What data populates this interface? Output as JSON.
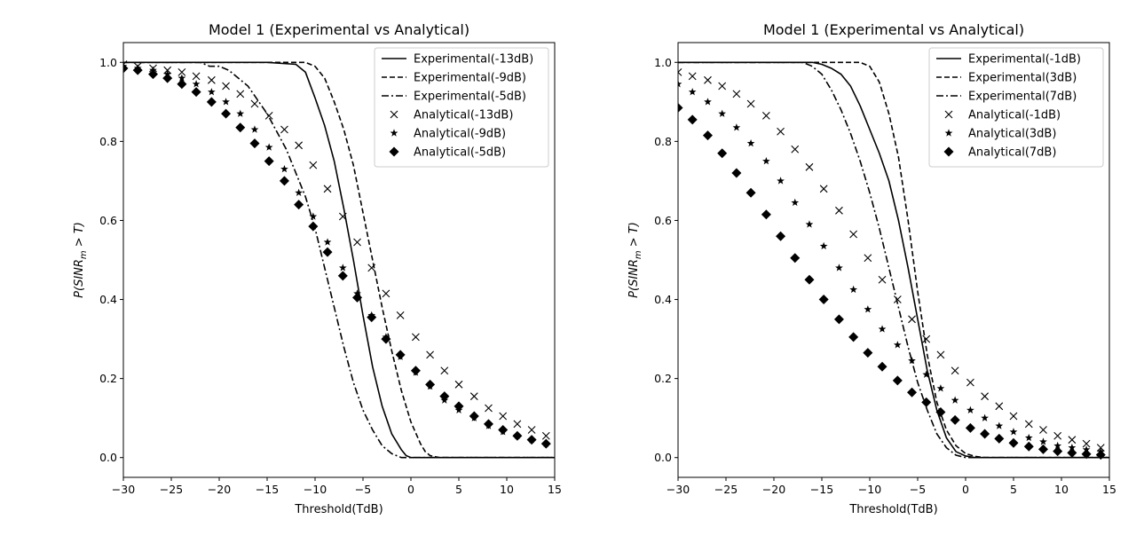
{
  "chart_data": [
    {
      "type": "line",
      "title": "Model 1 (Experimental vs Analytical)",
      "xlabel": "Threshold(TdB)",
      "ylabel_prefix": "P(SINR",
      "ylabel_sub": "m",
      "ylabel_suffix": " > T)",
      "xlim": [
        -30,
        15
      ],
      "ylim": [
        -0.05,
        1.05
      ],
      "xticks": [
        -30,
        -25,
        -20,
        -15,
        -10,
        -5,
        0,
        5,
        10,
        15
      ],
      "yticks": [
        0.0,
        0.2,
        0.4,
        0.6,
        0.8,
        1.0
      ],
      "legend_position": "top-right",
      "series": [
        {
          "name": "Experimental(-13dB)",
          "style": "solid",
          "marker": "none",
          "x": [
            -30,
            -15,
            -12,
            -11,
            -10,
            -9,
            -8,
            -7,
            -6,
            -5,
            -4,
            -3,
            -2,
            -1,
            -0.5,
            0,
            15
          ],
          "y": [
            1.0,
            1.0,
            0.995,
            0.975,
            0.91,
            0.84,
            0.75,
            0.63,
            0.5,
            0.36,
            0.23,
            0.13,
            0.06,
            0.02,
            0.005,
            0.0,
            0.0
          ]
        },
        {
          "name": "Experimental(-9dB)",
          "style": "dashed",
          "marker": "none",
          "x": [
            -30,
            -11,
            -10,
            -9,
            -8,
            -7,
            -6,
            -5,
            -4,
            -3,
            -2,
            -1,
            0,
            1,
            1.5,
            2,
            3,
            15
          ],
          "y": [
            1.0,
            1.0,
            0.99,
            0.96,
            0.9,
            0.83,
            0.74,
            0.62,
            0.5,
            0.38,
            0.27,
            0.17,
            0.09,
            0.035,
            0.015,
            0.005,
            0.0,
            0.0
          ]
        },
        {
          "name": "Experimental(-5dB)",
          "style": "dashdot",
          "marker": "none",
          "x": [
            -30,
            -22,
            -21,
            -20,
            -19,
            -17,
            -15,
            -13,
            -11,
            -10,
            -9,
            -8,
            -7,
            -6,
            -5,
            -4,
            -3,
            -2,
            -1.5,
            -1,
            0,
            15
          ],
          "y": [
            1.0,
            1.0,
            0.99,
            0.99,
            0.98,
            0.94,
            0.87,
            0.78,
            0.66,
            0.58,
            0.48,
            0.38,
            0.28,
            0.19,
            0.12,
            0.07,
            0.03,
            0.01,
            0.005,
            0.0,
            0.0,
            0.0
          ]
        },
        {
          "name": "Analytical(-13dB)",
          "style": "none",
          "marker": "x",
          "x": [
            -30,
            -28.5,
            -26.9,
            -25.4,
            -23.9,
            -22.4,
            -20.8,
            -19.3,
            -17.8,
            -16.3,
            -14.8,
            -13.2,
            -11.7,
            -10.2,
            -8.7,
            -7.1,
            -5.6,
            -4.1,
            -2.6,
            -1.1,
            0.5,
            2,
            3.5,
            5,
            6.6,
            8.1,
            9.6,
            11.1,
            12.6,
            14.1
          ],
          "y": [
            0.995,
            0.99,
            0.985,
            0.98,
            0.975,
            0.965,
            0.955,
            0.94,
            0.92,
            0.895,
            0.865,
            0.83,
            0.79,
            0.74,
            0.68,
            0.61,
            0.545,
            0.48,
            0.415,
            0.36,
            0.305,
            0.26,
            0.22,
            0.185,
            0.155,
            0.125,
            0.105,
            0.085,
            0.07,
            0.055
          ]
        },
        {
          "name": "Analytical(-9dB)",
          "style": "none",
          "marker": "star",
          "x": [
            -30,
            -28.5,
            -26.9,
            -25.4,
            -23.9,
            -22.4,
            -20.8,
            -19.3,
            -17.8,
            -16.3,
            -14.8,
            -13.2,
            -11.7,
            -10.2,
            -8.7,
            -7.1,
            -5.6,
            -4.1,
            -2.6,
            -1.1,
            0.5,
            2,
            3.5,
            5,
            6.6,
            8.1,
            9.6,
            11.1,
            12.6,
            14.1
          ],
          "y": [
            0.99,
            0.985,
            0.98,
            0.97,
            0.96,
            0.945,
            0.925,
            0.9,
            0.87,
            0.83,
            0.785,
            0.73,
            0.67,
            0.61,
            0.545,
            0.48,
            0.415,
            0.36,
            0.305,
            0.255,
            0.215,
            0.18,
            0.145,
            0.12,
            0.1,
            0.08,
            0.065,
            0.055,
            0.045,
            0.035
          ]
        },
        {
          "name": "Analytical(-5dB)",
          "style": "none",
          "marker": "diamond",
          "x": [
            -30,
            -28.5,
            -26.9,
            -25.4,
            -23.9,
            -22.4,
            -20.8,
            -19.3,
            -17.8,
            -16.3,
            -14.8,
            -13.2,
            -11.7,
            -10.2,
            -8.7,
            -7.1,
            -5.6,
            -4.1,
            -2.6,
            -1.1,
            0.5,
            2,
            3.5,
            5,
            6.6,
            8.1,
            9.6,
            11.1,
            12.6,
            14.1
          ],
          "y": [
            0.985,
            0.98,
            0.97,
            0.96,
            0.945,
            0.925,
            0.9,
            0.87,
            0.835,
            0.795,
            0.75,
            0.7,
            0.64,
            0.585,
            0.52,
            0.46,
            0.405,
            0.355,
            0.3,
            0.26,
            0.22,
            0.185,
            0.155,
            0.13,
            0.105,
            0.085,
            0.07,
            0.055,
            0.045,
            0.035
          ]
        }
      ]
    },
    {
      "type": "line",
      "title": "Model 1 (Experimental vs Analytical)",
      "xlabel": "Threshold(TdB)",
      "ylabel_prefix": "P(SINR",
      "ylabel_sub": "m",
      "ylabel_suffix": " > T)",
      "xlim": [
        -30,
        15
      ],
      "ylim": [
        -0.05,
        1.05
      ],
      "xticks": [
        -30,
        -25,
        -20,
        -15,
        -10,
        -5,
        0,
        5,
        10,
        15
      ],
      "yticks": [
        0.0,
        0.2,
        0.4,
        0.6,
        0.8,
        1.0
      ],
      "legend_position": "top-right",
      "series": [
        {
          "name": "Experimental(-1dB)",
          "style": "solid",
          "marker": "none",
          "x": [
            -30,
            -16,
            -15,
            -14,
            -13,
            -12,
            -11,
            -10,
            -9,
            -8,
            -7,
            -6,
            -5,
            -4,
            -3,
            -2,
            -1,
            0,
            1,
            15
          ],
          "y": [
            1.0,
            1.0,
            0.995,
            0.985,
            0.97,
            0.94,
            0.89,
            0.83,
            0.77,
            0.7,
            0.6,
            0.48,
            0.35,
            0.22,
            0.12,
            0.05,
            0.015,
            0.004,
            0.0,
            0.0
          ]
        },
        {
          "name": "Experimental(3dB)",
          "style": "dashed",
          "marker": "none",
          "x": [
            -30,
            -11,
            -10,
            -9,
            -8,
            -7,
            -6,
            -5,
            -4,
            -3,
            -2,
            -1,
            0,
            1,
            2,
            15
          ],
          "y": [
            1.0,
            1.0,
            0.99,
            0.95,
            0.87,
            0.76,
            0.6,
            0.42,
            0.26,
            0.14,
            0.07,
            0.03,
            0.01,
            0.003,
            0.0,
            0.0
          ]
        },
        {
          "name": "Experimental(7dB)",
          "style": "dashdot",
          "marker": "none",
          "x": [
            -30,
            -17,
            -16,
            -15,
            -14,
            -13,
            -12,
            -11,
            -10,
            -9,
            -8,
            -7,
            -6,
            -5,
            -4,
            -3,
            -2,
            -1,
            0,
            15
          ],
          "y": [
            1.0,
            1.0,
            0.99,
            0.97,
            0.93,
            0.88,
            0.82,
            0.75,
            0.67,
            0.58,
            0.48,
            0.38,
            0.28,
            0.19,
            0.12,
            0.06,
            0.025,
            0.006,
            0.0,
            0.0
          ]
        },
        {
          "name": "Analytical(-1dB)",
          "style": "none",
          "marker": "x",
          "x": [
            -30,
            -28.5,
            -26.9,
            -25.4,
            -23.9,
            -22.4,
            -20.8,
            -19.3,
            -17.8,
            -16.3,
            -14.8,
            -13.2,
            -11.7,
            -10.2,
            -8.7,
            -7.1,
            -5.6,
            -4.1,
            -2.6,
            -1.1,
            0.5,
            2,
            3.5,
            5,
            6.6,
            8.1,
            9.6,
            11.1,
            12.6,
            14.1
          ],
          "y": [
            0.975,
            0.965,
            0.955,
            0.94,
            0.92,
            0.895,
            0.865,
            0.825,
            0.78,
            0.735,
            0.68,
            0.625,
            0.565,
            0.505,
            0.45,
            0.4,
            0.35,
            0.3,
            0.26,
            0.22,
            0.19,
            0.155,
            0.13,
            0.105,
            0.085,
            0.07,
            0.055,
            0.045,
            0.035,
            0.025
          ]
        },
        {
          "name": "Analytical(3dB)",
          "style": "none",
          "marker": "star",
          "x": [
            -30,
            -28.5,
            -26.9,
            -25.4,
            -23.9,
            -22.4,
            -20.8,
            -19.3,
            -17.8,
            -16.3,
            -14.8,
            -13.2,
            -11.7,
            -10.2,
            -8.7,
            -7.1,
            -5.6,
            -4.1,
            -2.6,
            -1.1,
            0.5,
            2,
            3.5,
            5,
            6.6,
            8.1,
            9.6,
            11.1,
            12.6,
            14.1
          ],
          "y": [
            0.945,
            0.925,
            0.9,
            0.87,
            0.835,
            0.795,
            0.75,
            0.7,
            0.645,
            0.59,
            0.535,
            0.48,
            0.425,
            0.375,
            0.325,
            0.285,
            0.245,
            0.21,
            0.175,
            0.145,
            0.12,
            0.1,
            0.08,
            0.065,
            0.05,
            0.04,
            0.03,
            0.025,
            0.02,
            0.015
          ]
        },
        {
          "name": "Analytical(7dB)",
          "style": "none",
          "marker": "diamond",
          "x": [
            -30,
            -28.5,
            -26.9,
            -25.4,
            -23.9,
            -22.4,
            -20.8,
            -19.3,
            -17.8,
            -16.3,
            -14.8,
            -13.2,
            -11.7,
            -10.2,
            -8.7,
            -7.1,
            -5.6,
            -4.1,
            -2.6,
            -1.1,
            0.5,
            2,
            3.5,
            5,
            6.6,
            8.1,
            9.6,
            11.1,
            12.6,
            14.1
          ],
          "y": [
            0.885,
            0.855,
            0.815,
            0.77,
            0.72,
            0.67,
            0.615,
            0.56,
            0.505,
            0.45,
            0.4,
            0.35,
            0.305,
            0.265,
            0.23,
            0.195,
            0.165,
            0.14,
            0.115,
            0.095,
            0.075,
            0.06,
            0.048,
            0.037,
            0.028,
            0.021,
            0.016,
            0.012,
            0.009,
            0.007
          ]
        }
      ]
    }
  ]
}
